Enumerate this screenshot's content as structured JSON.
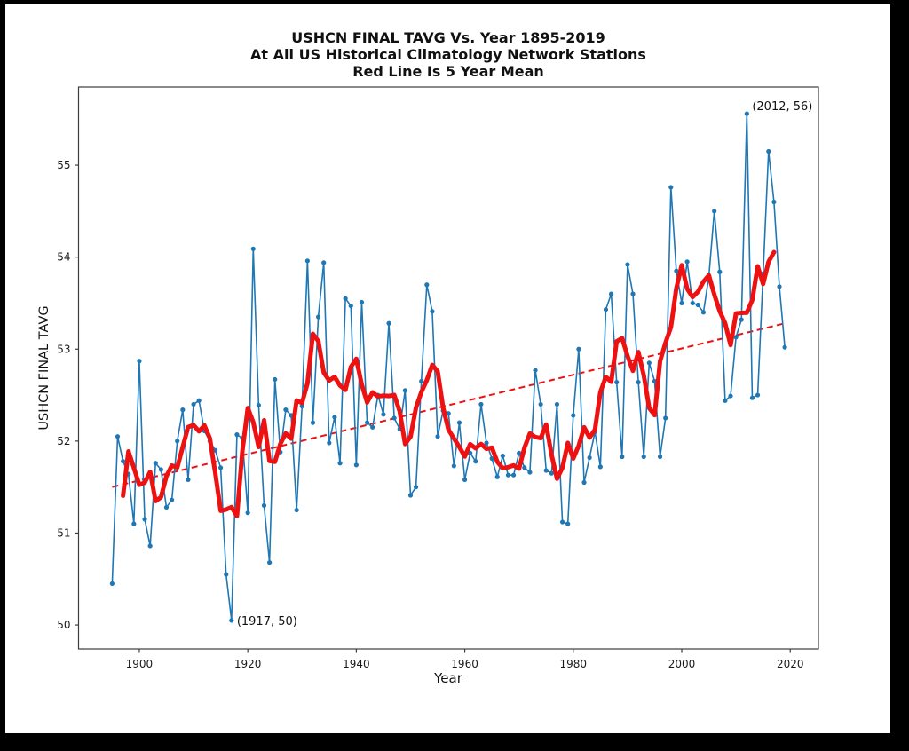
{
  "figure": {
    "frame_color": "#000000",
    "canvas_color": "#ffffff",
    "spine_color": "#3d3d3d"
  },
  "chart_data": {
    "type": "line",
    "title": "USHCN FINAL TAVG Vs. Year 1895-2019",
    "subtitle": "At All US Historical Climatology Network Stations",
    "subtitle2": "Red Line Is 5 Year Mean",
    "xlabel": "Year",
    "ylabel": "USHCN FINAL TAVG",
    "x_start_year": 1895,
    "x_end_year": 2019,
    "xlim": [
      1888.8,
      2025.2
    ],
    "ylim": [
      49.74,
      55.85
    ],
    "xticks": [
      1900,
      1920,
      1940,
      1960,
      1980,
      2000,
      2020
    ],
    "yticks": [
      50,
      51,
      52,
      53,
      54,
      55
    ],
    "grid": false,
    "legend": "none",
    "series": [
      {
        "name": "annual-tavg",
        "style": "solid-line-with-markers",
        "color": "#1f77b4",
        "line_width": 1.6,
        "marker_radius": 2.6,
        "values": [
          50.45,
          52.05,
          51.78,
          51.64,
          51.1,
          52.87,
          51.15,
          50.86,
          51.76,
          51.69,
          51.28,
          51.36,
          52.0,
          52.34,
          51.58,
          52.4,
          52.44,
          52.11,
          52.0,
          51.9,
          51.71,
          50.55,
          50.05,
          52.07,
          52.03,
          51.22,
          54.09,
          52.39,
          51.3,
          50.68,
          52.67,
          51.88,
          52.34,
          52.28,
          51.25,
          52.38,
          53.96,
          52.2,
          53.35,
          53.94,
          51.98,
          52.26,
          51.76,
          53.55,
          53.47,
          51.74,
          53.51,
          52.2,
          52.15,
          52.5,
          52.29,
          53.28,
          52.25,
          52.13,
          52.55,
          51.41,
          51.5,
          52.65,
          53.7,
          53.41,
          52.05,
          52.33,
          52.3,
          51.73,
          52.2,
          51.58,
          51.87,
          51.78,
          52.4,
          51.98,
          51.81,
          51.61,
          51.84,
          51.63,
          51.63,
          51.87,
          51.71,
          51.66,
          52.77,
          52.4,
          51.68,
          51.65,
          52.4,
          51.12,
          51.1,
          52.28,
          53.0,
          51.55,
          51.82,
          52.1,
          51.72,
          53.43,
          53.6,
          52.64,
          51.83,
          53.92,
          53.6,
          52.64,
          51.83,
          52.85,
          52.65,
          51.83,
          52.25,
          54.76,
          53.85,
          53.5,
          53.95,
          53.5,
          53.48,
          53.4,
          53.79,
          54.5,
          53.84,
          52.44,
          52.49,
          53.13,
          53.32,
          55.56,
          52.47,
          52.5,
          53.82,
          55.15,
          54.6,
          53.68,
          53.02
        ]
      },
      {
        "name": "5-year-mean",
        "style": "solid-line",
        "color": "#ee1111",
        "line_width": 5,
        "derived": "centered 5-year rolling mean of annual-tavg",
        "window": 5
      },
      {
        "name": "linear-trend",
        "style": "dashed-line",
        "color": "#ee1111",
        "line_width": 2,
        "points": [
          {
            "year": 1895,
            "value": 51.5
          },
          {
            "year": 2019,
            "value": 53.28
          }
        ]
      }
    ],
    "annotations": [
      {
        "text": "(2012, 56)",
        "year": 2012,
        "value": 55.56
      },
      {
        "text": "(1917, 50)",
        "year": 1917,
        "value": 50.05
      }
    ]
  }
}
